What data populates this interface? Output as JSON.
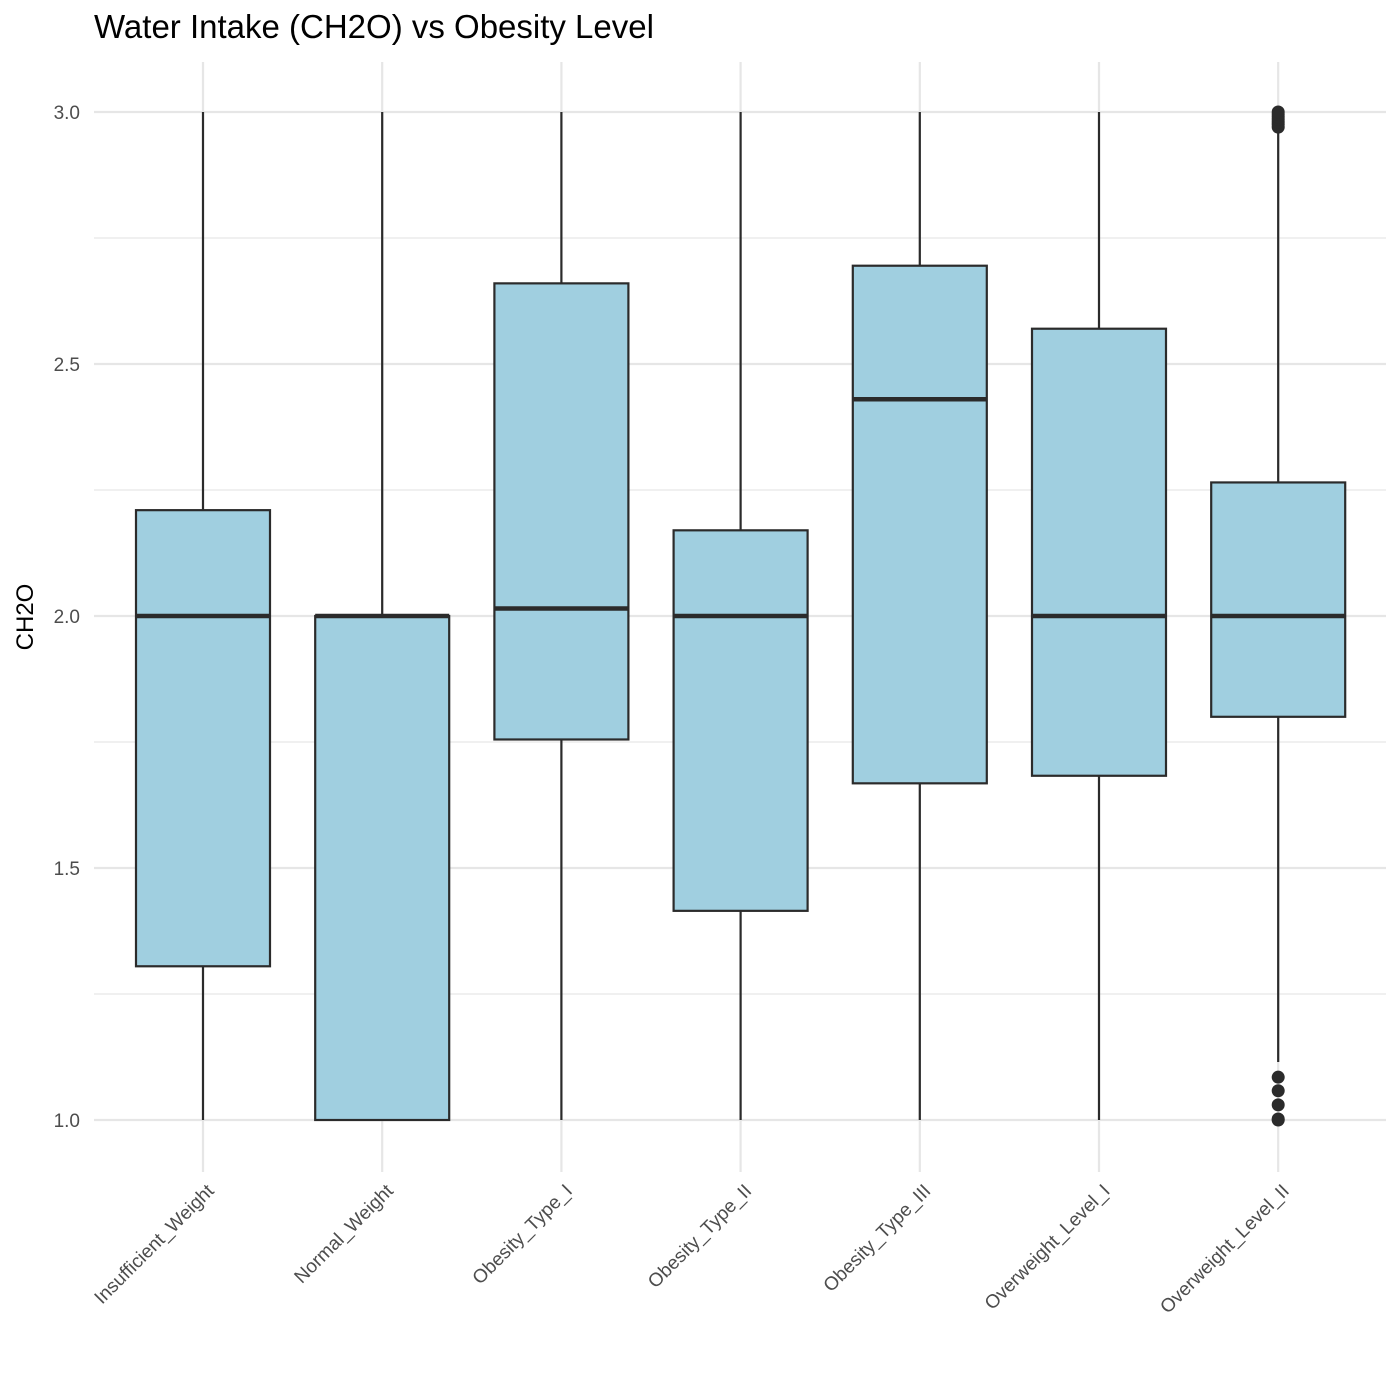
{
  "chart_data": {
    "type": "box",
    "title": "Water Intake (CH2O) vs Obesity Level",
    "xlabel": "",
    "ylabel": "CH2O",
    "ylim": [
      0.9,
      3.1
    ],
    "y_ticks": [
      1.0,
      1.5,
      2.0,
      2.5,
      3.0
    ],
    "y_tick_labels": [
      "1.0",
      "1.5",
      "2.0",
      "2.5",
      "3.0"
    ],
    "grid": true,
    "categories": [
      "Insufficient_Weight",
      "Normal_Weight",
      "Obesity_Type_I",
      "Obesity_Type_II",
      "Obesity_Type_III",
      "Overweight_Level_I",
      "Overweight_Level_II"
    ],
    "boxes": [
      {
        "category": "Insufficient_Weight",
        "min": 1.0,
        "q1": 1.305,
        "median": 2.0,
        "q3": 2.21,
        "max": 3.0,
        "outliers": []
      },
      {
        "category": "Normal_Weight",
        "min": 1.0,
        "q1": 1.0,
        "median": 2.0,
        "q3": 2.0,
        "max": 3.0,
        "outliers": []
      },
      {
        "category": "Obesity_Type_I",
        "min": 1.0,
        "q1": 1.755,
        "median": 2.015,
        "q3": 2.66,
        "max": 3.0,
        "outliers": []
      },
      {
        "category": "Obesity_Type_II",
        "min": 1.0,
        "q1": 1.415,
        "median": 2.0,
        "q3": 2.17,
        "max": 3.0,
        "outliers": []
      },
      {
        "category": "Obesity_Type_III",
        "min": 1.0,
        "q1": 1.668,
        "median": 2.43,
        "q3": 2.695,
        "max": 3.0,
        "outliers": []
      },
      {
        "category": "Overweight_Level_I",
        "min": 1.0,
        "q1": 1.683,
        "median": 2.0,
        "q3": 2.57,
        "max": 3.0,
        "outliers": []
      },
      {
        "category": "Overweight_Level_II",
        "min": 1.115,
        "q1": 1.8,
        "median": 2.0,
        "q3": 2.265,
        "max": 2.965,
        "outliers": [
          1.0,
          1.002,
          1.03,
          1.058,
          1.085,
          2.97,
          2.975,
          2.98,
          2.985,
          2.99,
          2.995,
          3.0
        ]
      }
    ],
    "colors": {
      "box_fill": "#a0cfe0",
      "box_stroke": "#2b2b2b",
      "grid": "#e6e6e6",
      "tick_text": "#4d4d4d"
    }
  }
}
